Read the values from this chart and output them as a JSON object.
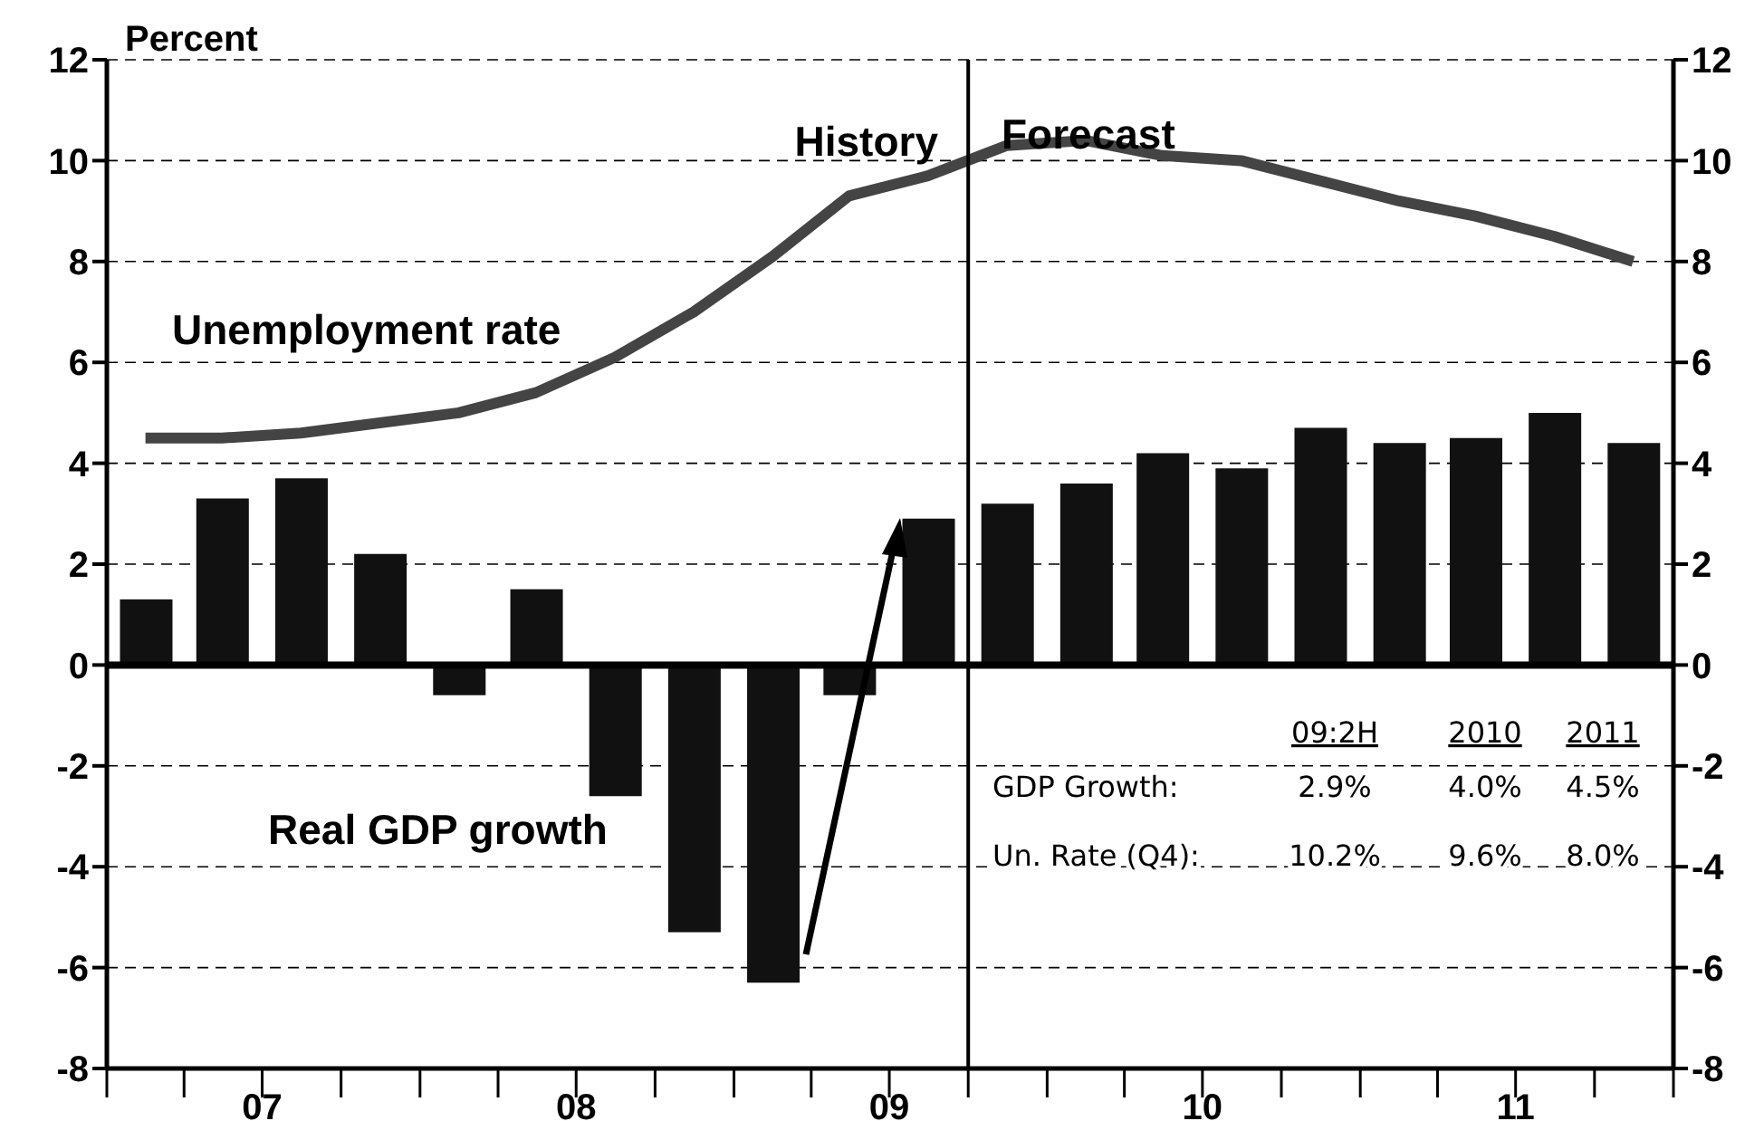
{
  "chart_data": {
    "type": "bar",
    "ylabel": "Percent",
    "x": [
      "2007-02-15",
      "2007-05-15",
      "2007-08-15",
      "2007-11-15",
      "2008-02-15",
      "2008-05-15",
      "2008-08-15",
      "2008-11-15",
      "2009-02-15",
      "2009-05-15",
      "2009-08-15",
      "2009-11-15",
      "2010-02-15",
      "2010-05-15",
      "2010-08-15",
      "2010-11-15",
      "2011-02-15",
      "2011-05-15",
      "2011-08-15",
      "2011-11-15"
    ],
    "series": [
      {
        "name": "Real GDP growth",
        "color": "#111111",
        "values": [
          1.3,
          3.3,
          3.7,
          2.2,
          -0.6,
          1.5,
          -2.6,
          -5.3,
          -6.3,
          -0.6,
          2.9,
          3.2,
          3.6,
          4.2,
          3.9,
          4.7,
          4.4,
          4.5,
          5.0,
          4.4
        ]
      },
      {
        "name": "Unemployment rate",
        "type": "line",
        "color": "#444444",
        "values": [
          4.5,
          4.5,
          4.6,
          4.8,
          5.0,
          5.4,
          6.1,
          7.0,
          8.1,
          9.3,
          9.7,
          10.3,
          10.4,
          10.1,
          10.0,
          9.6,
          9.2,
          8.9,
          8.5,
          8.0
        ]
      }
    ],
    "xlim": [
      "2007-01-01",
      "2012-01-01"
    ],
    "xticks": [
      {
        "value": "2007-01-01",
        "label": null
      },
      {
        "value": "2007-04-01",
        "label": null
      },
      {
        "value": "2007-07-01",
        "label": "07"
      },
      {
        "value": "2007-10-01",
        "label": null
      },
      {
        "value": "2008-01-01",
        "label": null
      },
      {
        "value": "2008-04-01",
        "label": null
      },
      {
        "value": "2008-07-01",
        "label": "08"
      },
      {
        "value": "2008-10-01",
        "label": null
      },
      {
        "value": "2009-01-01",
        "label": null
      },
      {
        "value": "2009-04-01",
        "label": null
      },
      {
        "value": "2009-07-01",
        "label": "09"
      },
      {
        "value": "2009-10-01",
        "label": null
      },
      {
        "value": "2010-01-01",
        "label": null
      },
      {
        "value": "2010-04-01",
        "label": null
      },
      {
        "value": "2010-07-01",
        "label": "10"
      },
      {
        "value": "2010-10-01",
        "label": null
      },
      {
        "value": "2011-01-01",
        "label": null
      },
      {
        "value": "2011-04-01",
        "label": null
      },
      {
        "value": "2011-07-01",
        "label": "11"
      },
      {
        "value": "2011-10-01",
        "label": null
      },
      {
        "value": "2012-01-01",
        "label": null
      }
    ],
    "ylim": [
      -8,
      12
    ],
    "yticks": [
      -8,
      -6,
      -4,
      -2,
      0,
      2,
      4,
      6,
      8,
      10,
      12
    ],
    "y2lim": [
      -8,
      12
    ],
    "y2ticks": [
      -8,
      -6,
      -4,
      -2,
      0,
      2,
      4,
      6,
      8,
      10,
      12
    ],
    "grid": "y",
    "legend": false,
    "marker": "none",
    "line_style": "solid",
    "ref_lines": [
      {
        "axis": "y",
        "value": 0,
        "color": "#000000"
      },
      {
        "axis": "x",
        "value": "2009-10-01",
        "color": "#000000"
      }
    ],
    "annotations": [
      "History",
      "Forecast",
      "09:2H",
      "2010",
      "2011",
      "GDP Growth:",
      "2.9%",
      "4.0%",
      "4.5%",
      "Un. Rate (Q4):",
      "10.2%",
      "9.6%",
      "8.0%"
    ]
  }
}
